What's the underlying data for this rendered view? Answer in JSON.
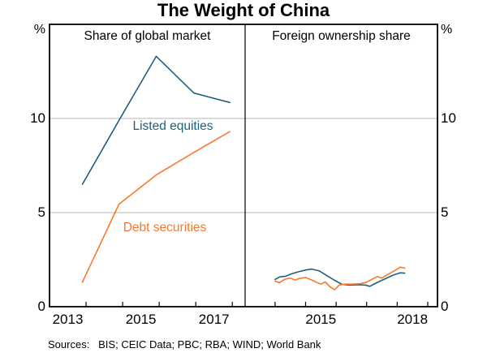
{
  "chart": {
    "title": "The Weight of China",
    "sources": "Sources:   BIS; CEIC Data; PBC; RBA; WIND; World Bank",
    "unit_left": "%",
    "unit_right": "%"
  },
  "chart_data": {
    "type": "line",
    "title": "The Weight of China",
    "grid": true,
    "legend_position": "in-plot-labels",
    "y_axis": {
      "unit": "%",
      "min": 0,
      "max": 15,
      "ticks": [
        0,
        5,
        10
      ],
      "gridlines": [
        5,
        10
      ]
    },
    "colors": {
      "listed_equities": "#21607d",
      "debt_securities": "#f8792b",
      "grid": "#b4b4b4",
      "axis": "#000000"
    },
    "panels": [
      {
        "title": "Share of global market",
        "x_domain": [
          2013.0,
          2018.35
        ],
        "x_ticks": [
          2014,
          2015,
          2016,
          2017,
          2018
        ],
        "x_tick_labels": [
          {
            "label": "2013",
            "at": 2013.5
          },
          {
            "label": "2015",
            "at": 2015.5
          },
          {
            "label": "2017",
            "at": 2017.5
          }
        ],
        "series": [
          {
            "name": "Listed equities",
            "color": "#21607d",
            "x": [
              2013.9,
              2014.9,
              2015.92,
              2016.95,
              2017.93
            ],
            "y": [
              6.5,
              9.9,
              13.3,
              11.35,
              10.85
            ]
          },
          {
            "name": "Debt securities",
            "color": "#f8792b",
            "x": [
              2013.9,
              2014.9,
              2015.92,
              2016.95,
              2017.93
            ],
            "y": [
              1.3,
              5.45,
              7.0,
              8.2,
              9.3
            ]
          }
        ],
        "annotations": [
          {
            "text": "Listed equities",
            "color": "#21607d",
            "x": 2016.38,
            "y": 9.55
          },
          {
            "text": "Debt securities",
            "color": "#f8792b",
            "x": 2016.16,
            "y": 4.18
          }
        ]
      },
      {
        "title": "Foreign ownership share",
        "x_domain": [
          2013.02,
          2019.32
        ],
        "x_ticks": [
          2014,
          2015,
          2016,
          2017,
          2018,
          2019
        ],
        "x_tick_labels": [
          {
            "label": "2015",
            "at": 2015.5
          },
          {
            "label": "2018",
            "at": 2018.5
          }
        ],
        "series": [
          {
            "name": "Listed equities",
            "color": "#21607d",
            "x": [
              2014.0,
              2014.15,
              2014.35,
              2014.55,
              2014.75,
              2015.0,
              2015.2,
              2015.45,
              2015.7,
              2015.95,
              2016.2,
              2016.45,
              2016.7,
              2016.95,
              2017.1,
              2017.3,
              2017.5,
              2017.7,
              2017.9,
              2018.1,
              2018.25
            ],
            "y": [
              1.45,
              1.58,
              1.62,
              1.75,
              1.85,
              1.95,
              2.0,
              1.9,
              1.65,
              1.4,
              1.18,
              1.15,
              1.17,
              1.15,
              1.08,
              1.25,
              1.4,
              1.55,
              1.7,
              1.8,
              1.78
            ]
          },
          {
            "name": "Debt securities",
            "color": "#f8792b",
            "x": [
              2014.0,
              2014.15,
              2014.3,
              2014.5,
              2014.65,
              2014.8,
              2015.0,
              2015.2,
              2015.35,
              2015.5,
              2015.65,
              2015.8,
              2015.95,
              2016.1,
              2016.3,
              2016.55,
              2016.8,
              2017.0,
              2017.2,
              2017.35,
              2017.5,
              2017.7,
              2017.9,
              2018.1,
              2018.25
            ],
            "y": [
              1.35,
              1.28,
              1.45,
              1.52,
              1.42,
              1.5,
              1.55,
              1.42,
              1.3,
              1.2,
              1.32,
              1.05,
              0.9,
              1.15,
              1.2,
              1.2,
              1.22,
              1.3,
              1.48,
              1.6,
              1.52,
              1.72,
              1.9,
              2.1,
              2.05
            ]
          }
        ],
        "annotations": []
      }
    ]
  }
}
